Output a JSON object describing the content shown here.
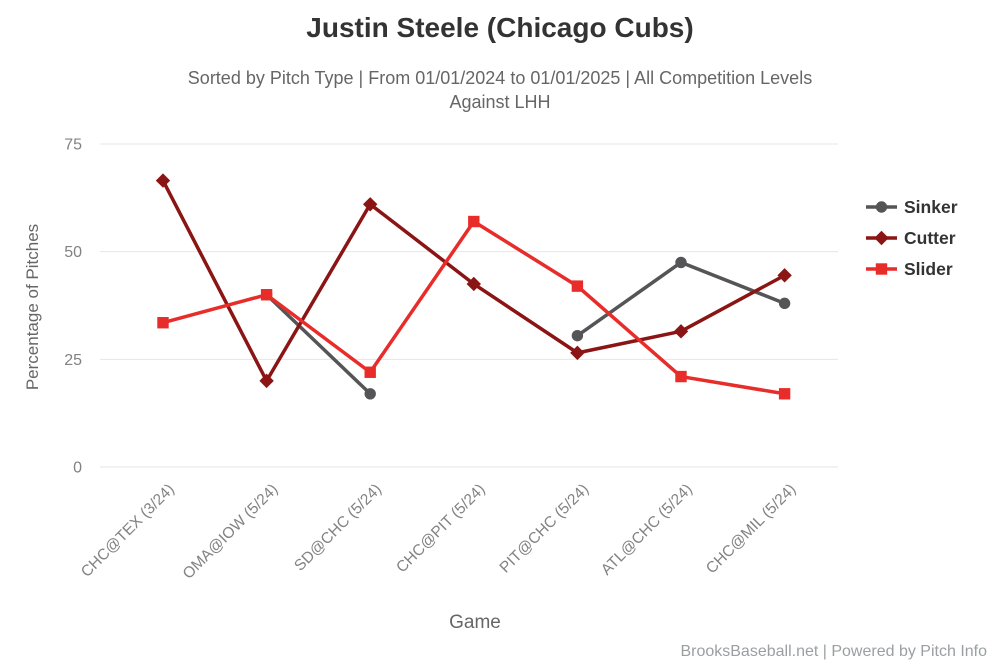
{
  "header": {
    "title": "Justin Steele (Chicago Cubs)",
    "subtitle_line1": "Sorted by Pitch Type | From 01/01/2024 to 01/01/2025 | All Competition Levels",
    "subtitle_line2": "Against LHH"
  },
  "footer": {
    "credit": "BrooksBaseball.net | Powered by Pitch Info"
  },
  "chart_data": {
    "type": "line",
    "title": "Justin Steele (Chicago Cubs)",
    "subtitle": "Sorted by Pitch Type | From 01/01/2024 to 01/01/2025 | All Competition Levels Against LHH",
    "xlabel": "Game",
    "ylabel": "Percentage of Pitches",
    "ylim": [
      0,
      75
    ],
    "yticks": [
      0,
      25,
      50,
      75
    ],
    "grid": true,
    "legend_position": "right",
    "categories": [
      "CHC@TEX (3/24)",
      "OMA@IOW (5/24)",
      "SD@CHC (5/24)",
      "CHC@PIT (5/24)",
      "PIT@CHC (5/24)",
      "ATL@CHC (5/24)",
      "CHC@MIL (5/24)"
    ],
    "series": [
      {
        "name": "Sinker",
        "color": "#555558",
        "marker": "circle",
        "values": [
          null,
          40,
          17,
          null,
          30.5,
          47.5,
          38
        ]
      },
      {
        "name": "Cutter",
        "color": "#8B1514",
        "marker": "diamond",
        "values": [
          66.5,
          20,
          61,
          42.5,
          26.5,
          31.5,
          44.5
        ]
      },
      {
        "name": "Slider",
        "color": "#E82C2A",
        "marker": "square",
        "values": [
          33.5,
          40,
          22,
          57,
          42,
          21,
          17
        ]
      }
    ],
    "colors": {
      "grid": "#e6e6e6",
      "tick_label": "#828282",
      "axis_title": "#666666",
      "legend_text": "#333333"
    }
  }
}
